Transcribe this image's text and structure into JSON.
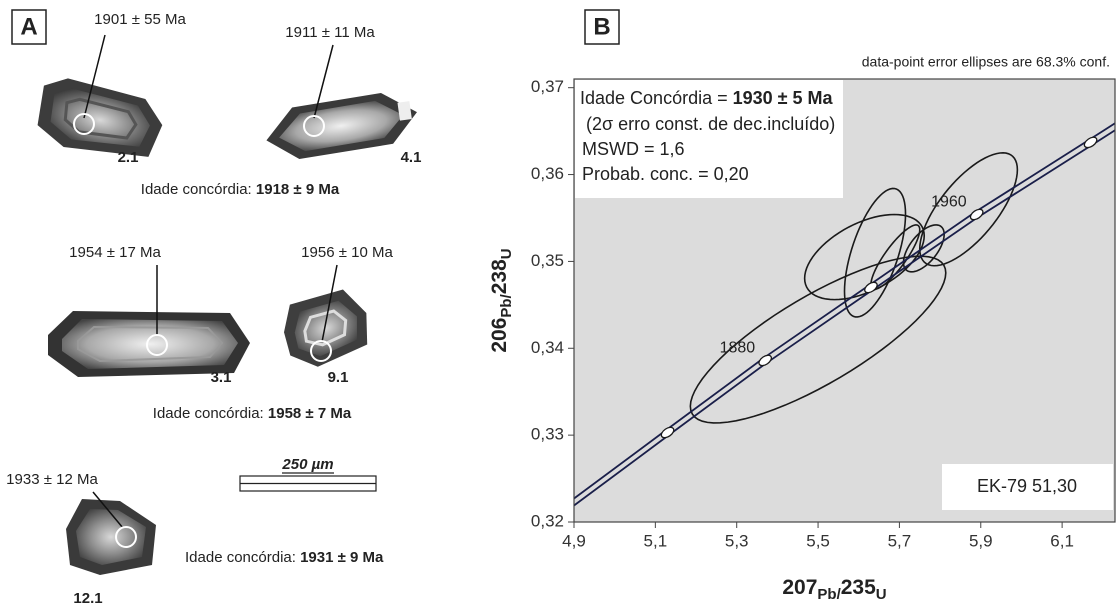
{
  "panel_a": {
    "label": "A",
    "grains": [
      {
        "age": "1901 ± 55 Ma",
        "id": "2.1"
      },
      {
        "age": "1911 ± 11 Ma",
        "id": "4.1"
      },
      {
        "age": "1954 ± 17 Ma",
        "id": "3.1"
      },
      {
        "age": "1956 ± 10 Ma",
        "id": "9.1"
      },
      {
        "age": "1933 ± 12 Ma",
        "id": "12.1"
      }
    ],
    "group_ages": [
      {
        "prefix": "Idade concórdia:",
        "age": "1918 ± 9 Ma"
      },
      {
        "prefix": "Idade concórdia:",
        "age": "1958 ± 7 Ma"
      },
      {
        "prefix": "Idade concórdia:",
        "age": "1931 ± 9 Ma"
      }
    ],
    "scale": "250 µm"
  },
  "chart_data": {
    "type": "concordia",
    "panel_label": "B",
    "note": "data-point error ellipses are 68.3% conf.",
    "info": {
      "age_prefix": "Idade Concórdia =",
      "age": "1930 ± 5 Ma",
      "lines": [
        "(2σ erro const. de dec.incluído)",
        "MSWD = 1,6",
        "Probab. conc. = 0,20"
      ]
    },
    "sample": "EK-79 51,30",
    "x_label": [
      "207",
      "Pb/",
      "235",
      "U"
    ],
    "y_label": [
      "206",
      "Pb/",
      "238",
      "U"
    ],
    "xlim": [
      4.9,
      6.23
    ],
    "ylim": [
      0.32,
      0.371
    ],
    "xticks": [
      {
        "value": 4.9,
        "label": "4,9"
      },
      {
        "value": 5.1,
        "label": "5,1"
      },
      {
        "value": 5.3,
        "label": "5,3"
      },
      {
        "value": 5.5,
        "label": "5,5"
      },
      {
        "value": 5.7,
        "label": "5,7"
      },
      {
        "value": 5.9,
        "label": "5,9"
      },
      {
        "value": 6.1,
        "label": "6,1"
      }
    ],
    "yticks": [
      {
        "value": 0.32,
        "label": "0,32"
      },
      {
        "value": 0.33,
        "label": "0,33"
      },
      {
        "value": 0.34,
        "label": "0,34"
      },
      {
        "value": 0.35,
        "label": "0,35"
      },
      {
        "value": 0.36,
        "label": "0,36"
      },
      {
        "value": 0.37,
        "label": "0,37"
      }
    ],
    "background": "#dcdcdc",
    "concordia": {
      "x": [
        4.9,
        5.13,
        5.37,
        5.63,
        5.89,
        6.17,
        6.23
      ],
      "y": [
        0.3223,
        0.3303,
        0.3386,
        0.347,
        0.3554,
        0.3637,
        0.3655
      ],
      "color": "#1a1f4a"
    },
    "age_marks": {
      "labels": [
        null,
        "1880",
        null,
        "1960",
        null
      ],
      "x": [
        5.13,
        5.37,
        5.63,
        5.89,
        6.17
      ],
      "y": [
        0.3303,
        0.3386,
        0.347,
        0.3554,
        0.3637
      ]
    },
    "ellipses": [
      {
        "x": 5.5,
        "y": 0.341,
        "x_err": 0.314,
        "y_err": 0.0096,
        "rho": 0.8
      },
      {
        "x": 5.614,
        "y": 0.3505,
        "x_err": 0.147,
        "y_err": 0.0049,
        "rho": 0.5
      },
      {
        "x": 5.64,
        "y": 0.351,
        "x_err": 0.075,
        "y_err": 0.0074,
        "rho": 0.6
      },
      {
        "x": 5.69,
        "y": 0.3505,
        "x_err": 0.06,
        "y_err": 0.0037,
        "rho": 0.85
      },
      {
        "x": 5.76,
        "y": 0.3515,
        "x_err": 0.05,
        "y_err": 0.0027,
        "rho": 0.6
      },
      {
        "x": 5.87,
        "y": 0.356,
        "x_err": 0.12,
        "y_err": 0.0065,
        "rho": 0.7
      }
    ]
  }
}
